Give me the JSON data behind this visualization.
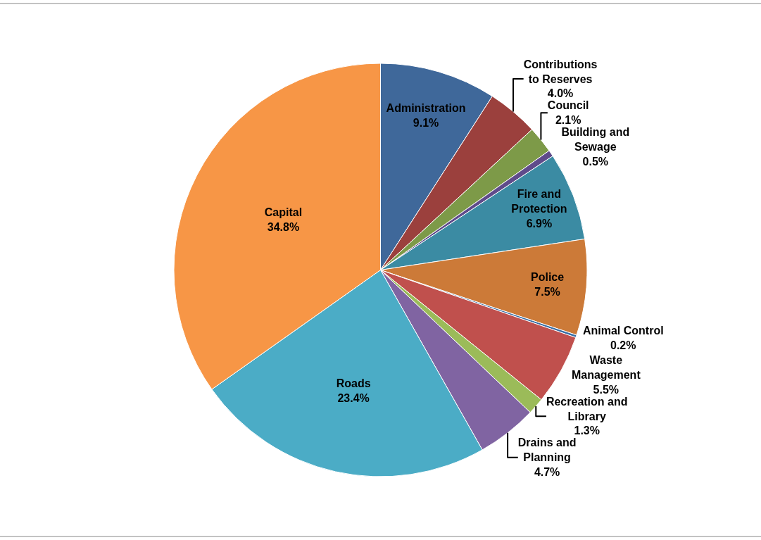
{
  "chart_data": {
    "type": "pie",
    "categories": [
      "Administration",
      "Contributions to Reserves",
      "Council",
      "Building and Sewage",
      "Fire and Protection",
      "Police",
      "Animal Control",
      "Waste Management",
      "Recreation and Library",
      "Drains and Planning",
      "Roads",
      "Capital"
    ],
    "values": [
      9.1,
      4.0,
      2.1,
      0.5,
      6.9,
      7.5,
      0.2,
      5.5,
      1.3,
      4.7,
      23.4,
      34.8
    ],
    "colors": [
      "#3f689a",
      "#9b403d",
      "#7d9a48",
      "#5f4b8b",
      "#3b8ba3",
      "#cc7a38",
      "#3a6fa5",
      "#c0504d",
      "#9bbb59",
      "#8064a2",
      "#4bacc6",
      "#f79646"
    ],
    "value_labels": [
      "9.1%",
      "4.0%",
      "2.1%",
      "0.5%",
      "6.9%",
      "7.5%",
      "0.2%",
      "5.5%",
      "1.3%",
      "4.7%",
      "23.4%",
      "34.8%"
    ],
    "legend": false
  }
}
